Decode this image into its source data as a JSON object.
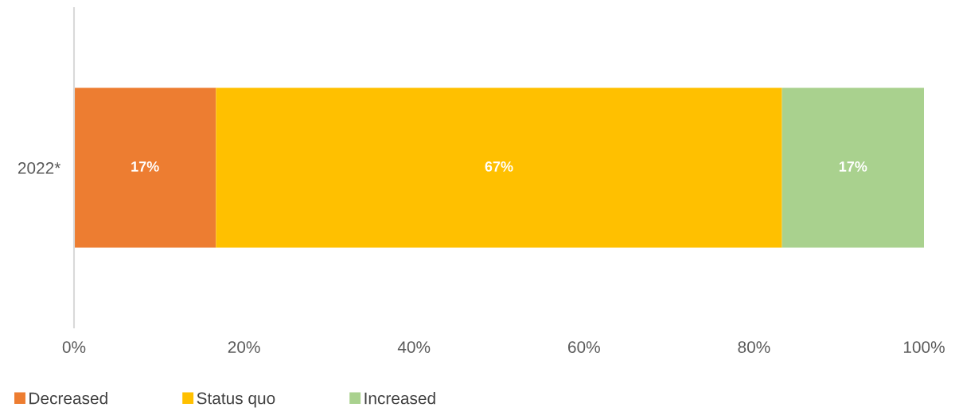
{
  "chart_data": {
    "type": "bar",
    "orientation": "horizontal",
    "stacked": true,
    "categories": [
      "2022*"
    ],
    "series": [
      {
        "name": "Decreased",
        "color": "#ed7d31",
        "values": [
          16.7
        ],
        "value_labels": [
          "17%"
        ]
      },
      {
        "name": "Status quo",
        "color": "#ffc000",
        "values": [
          66.6
        ],
        "value_labels": [
          "67%"
        ]
      },
      {
        "name": "Increased",
        "color": "#a9d18e",
        "values": [
          16.7
        ],
        "value_labels": [
          "17%"
        ]
      }
    ],
    "xlim": [
      0,
      100
    ],
    "xticks": [
      {
        "value": 0,
        "label": "0%"
      },
      {
        "value": 20,
        "label": "20%"
      },
      {
        "value": 40,
        "label": "40%"
      },
      {
        "value": 60,
        "label": "60%"
      },
      {
        "value": 80,
        "label": "80%"
      },
      {
        "value": 100,
        "label": "100%"
      }
    ],
    "grid": false,
    "legend": "bottom left"
  }
}
